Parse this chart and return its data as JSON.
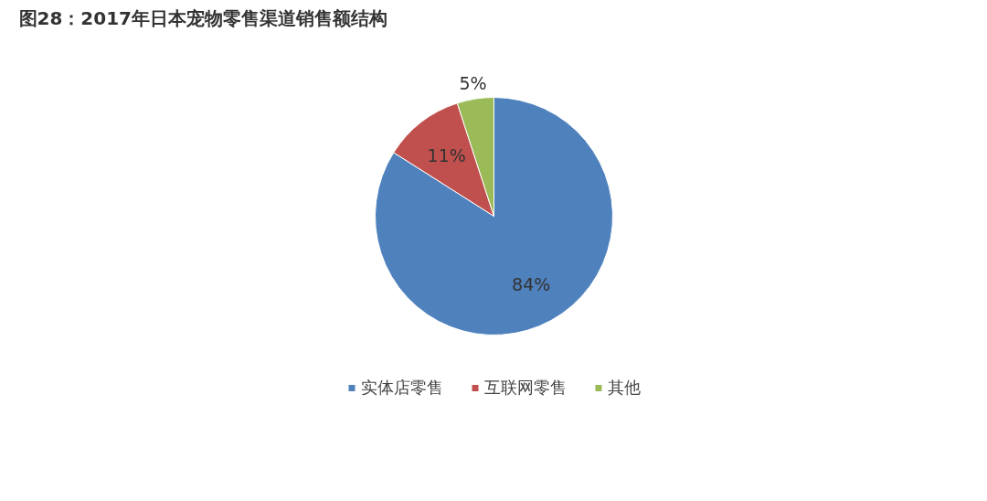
{
  "chart_data": {
    "type": "pie",
    "title": "图28：2017年日本宠物零售渠道销售额结构",
    "categories": [
      "实体店零售",
      "互联网零售",
      "其他"
    ],
    "values": [
      84,
      11,
      5
    ],
    "colors": [
      "#4f81bd",
      "#c0504d",
      "#9bbb59"
    ],
    "value_labels": [
      "84%",
      "11%",
      "5%"
    ],
    "legend": "bottom"
  }
}
